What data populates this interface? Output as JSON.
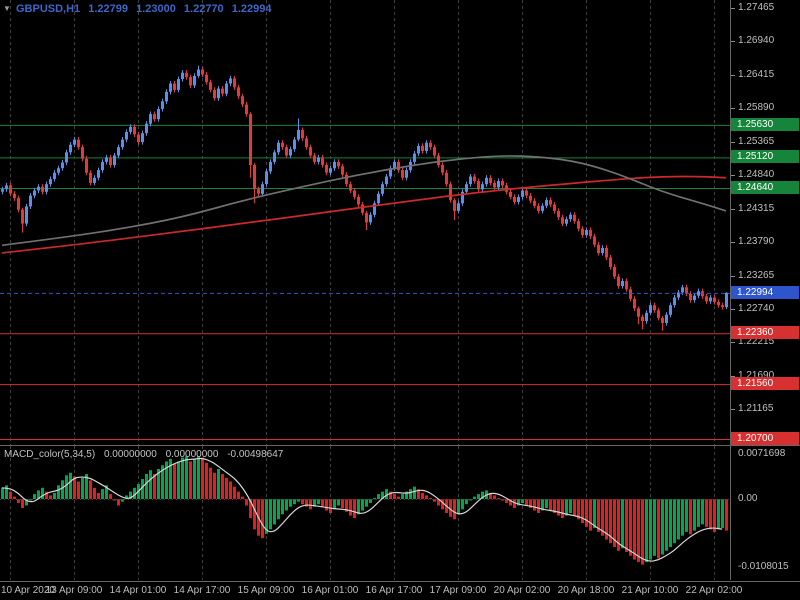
{
  "header": {
    "symbol_period": "GBPUSD,H1",
    "ohlc": {
      "open": "1.22799",
      "high": "1.23000",
      "low": "1.22770",
      "close": "1.22994"
    },
    "title_color": "#3e66c9",
    "dropdown_icon": "▼"
  },
  "macd_header": {
    "label": "MACD_color(5,34,5)",
    "values": [
      "0.00000000",
      "0.00000000",
      "-0.00498647"
    ]
  },
  "chart_data": [
    {
      "type": "candlestick",
      "title": "GBPUSD,H1",
      "xlabel": "",
      "ylabel": "",
      "ylim": [
        1.20605,
        1.27591
      ],
      "grid": "vertical-dashed",
      "x_tick_labels": [
        "10 Apr 2020",
        "13 Apr 09:00",
        "14 Apr 01:00",
        "14 Apr 17:00",
        "15 Apr 09:00",
        "16 Apr 01:00",
        "16 Apr 17:00",
        "17 Apr 09:00",
        "20 Apr 02:00",
        "20 Apr 18:00",
        "21 Apr 10:00",
        "22 Apr 02:00"
      ],
      "x_tick_bar_index": [
        2,
        18,
        34,
        50,
        66,
        82,
        98,
        114,
        130,
        146,
        162,
        178
      ],
      "y_tick_labels": [
        "1.27465",
        "1.26940",
        "1.26415",
        "1.25890",
        "1.25365",
        "1.24840",
        "1.24315",
        "1.23790",
        "1.23265",
        "1.22740",
        "1.22215",
        "1.21690",
        "1.21165"
      ],
      "first_open": 1.2458,
      "wick_default": 0.0004,
      "wick_overrides": {
        "5": [
          0.0003,
          0.0014
        ],
        "49": [
          0.0006,
          0.0003
        ],
        "62": [
          0.0003,
          0.002
        ],
        "63": [
          0.0003,
          0.0022
        ],
        "74": [
          0.0018,
          0.0003
        ],
        "91": [
          0.0003,
          0.0012
        ],
        "113": [
          0.0003,
          0.0014
        ],
        "159": [
          0.0003,
          0.0012
        ],
        "160": [
          0.0003,
          0.0013
        ],
        "165": [
          0.0003,
          0.0012
        ],
        "181": [
          0.0001,
          0.0003
        ]
      },
      "closes": [
        1.2462,
        1.2468,
        1.2455,
        1.2448,
        1.243,
        1.2408,
        1.2435,
        1.2452,
        1.246,
        1.2466,
        1.2458,
        1.247,
        1.2478,
        1.2488,
        1.2495,
        1.2504,
        1.252,
        1.2532,
        1.254,
        1.2528,
        1.251,
        1.2488,
        1.2472,
        1.248,
        1.2492,
        1.2505,
        1.2512,
        1.25,
        1.2515,
        1.2528,
        1.254,
        1.2552,
        1.256,
        1.2548,
        1.2536,
        1.255,
        1.2565,
        1.258,
        1.2572,
        1.2588,
        1.26,
        1.2615,
        1.2628,
        1.2618,
        1.2635,
        1.2645,
        1.2638,
        1.2625,
        1.264,
        1.265,
        1.2642,
        1.263,
        1.2618,
        1.2605,
        1.262,
        1.2612,
        1.2628,
        1.2636,
        1.2622,
        1.2608,
        1.2595,
        1.258,
        1.25,
        1.2462,
        1.2455,
        1.247,
        1.249,
        1.2505,
        1.252,
        1.2535,
        1.2528,
        1.2515,
        1.2525,
        1.254,
        1.2555,
        1.2542,
        1.2528,
        1.2515,
        1.2505,
        1.2512,
        1.25,
        1.2488,
        1.2495,
        1.2505,
        1.2498,
        1.2485,
        1.247,
        1.246,
        1.245,
        1.2438,
        1.2425,
        1.241,
        1.2422,
        1.244,
        1.2455,
        1.247,
        1.2482,
        1.2495,
        1.2505,
        1.2492,
        1.248,
        1.2492,
        1.2505,
        1.2518,
        1.253,
        1.2522,
        1.2535,
        1.2528,
        1.2515,
        1.25,
        1.2488,
        1.247,
        1.2445,
        1.2428,
        1.244,
        1.2458,
        1.247,
        1.2482,
        1.2475,
        1.2462,
        1.247,
        1.248,
        1.2472,
        1.2465,
        1.2475,
        1.2468,
        1.2458,
        1.245,
        1.2442,
        1.245,
        1.246,
        1.2452,
        1.2444,
        1.2436,
        1.2428,
        1.2436,
        1.2445,
        1.2438,
        1.2428,
        1.2418,
        1.2408,
        1.2415,
        1.2422,
        1.2412,
        1.24,
        1.239,
        1.2398,
        1.2388,
        1.2375,
        1.2362,
        1.237,
        1.2355,
        1.234,
        1.2325,
        1.231,
        1.2318,
        1.2305,
        1.229,
        1.2275,
        1.2262,
        1.2255,
        1.2268,
        1.228,
        1.2272,
        1.226,
        1.2252,
        1.2265,
        1.228,
        1.2292,
        1.23,
        1.2308,
        1.2298,
        1.2288,
        1.2295,
        1.2302,
        1.2294,
        1.2286,
        1.2292,
        1.2285,
        1.228,
        1.2277,
        1.22994
      ],
      "colors": {
        "up": "#5d8fe8",
        "down": "#e03a3a"
      },
      "overlays": {
        "ma_dark": {
          "color": "#707070",
          "points": [
            [
              0,
              1.2374
            ],
            [
              15,
              1.2386
            ],
            [
              30,
              1.24
            ],
            [
              45,
              1.2418
            ],
            [
              60,
              1.2444
            ],
            [
              75,
              1.2466
            ],
            [
              90,
              1.2486
            ],
            [
              105,
              1.2502
            ],
            [
              115,
              1.251
            ],
            [
              125,
              1.2515
            ],
            [
              135,
              1.2513
            ],
            [
              145,
              1.2504
            ],
            [
              155,
              1.2484
            ],
            [
              165,
              1.2458
            ],
            [
              175,
              1.244
            ],
            [
              181,
              1.2428
            ]
          ]
        },
        "ma_red": {
          "color": "#cc2a2a",
          "points": [
            [
              0,
              1.2362
            ],
            [
              20,
              1.2376
            ],
            [
              40,
              1.2392
            ],
            [
              60,
              1.2408
            ],
            [
              80,
              1.2425
            ],
            [
              100,
              1.2442
            ],
            [
              120,
              1.2458
            ],
            [
              140,
              1.247
            ],
            [
              155,
              1.2478
            ],
            [
              165,
              1.2482
            ],
            [
              175,
              1.2482
            ],
            [
              181,
              1.248
            ]
          ]
        }
      },
      "levels": {
        "resistance": [
          {
            "label": "1.25630",
            "value": 1.2563,
            "color": "#16843a"
          },
          {
            "label": "1.25120",
            "value": 1.2512,
            "color": "#16843a"
          },
          {
            "label": "1.24640",
            "value": 1.2464,
            "color": "#16843a"
          }
        ],
        "support": [
          {
            "label": "1.22360",
            "value": 1.2236,
            "color": "#d63030"
          },
          {
            "label": "1.21560",
            "value": 1.2156,
            "color": "#d63030"
          },
          {
            "label": "1.20700",
            "value": 1.207,
            "color": "#d63030"
          }
        ],
        "current_price": {
          "label": "1.22994",
          "value": 1.22994,
          "color": "#2f55cc"
        }
      }
    },
    {
      "type": "bar",
      "title": "MACD_color(5,34,5)",
      "ylim": [
        -0.01285,
        0.00845
      ],
      "y_tick_labels": [
        "0.0071698",
        "0.00",
        "-0.0108015"
      ],
      "colors": {
        "up": "#00a651",
        "down": "#e01f1f",
        "signal": "#d4d4d4"
      },
      "values": [
        0.0018,
        0.0022,
        0.0012,
        0.0004,
        -0.0006,
        -0.0014,
        -0.001,
        -0.0002,
        0.0008,
        0.0014,
        0.0018,
        0.0012,
        0.0006,
        0.001,
        0.0022,
        0.003,
        0.0038,
        0.0042,
        0.0036,
        0.0028,
        0.0034,
        0.004,
        0.003,
        0.0018,
        0.001,
        0.0016,
        0.0022,
        0.0008,
        -0.0002,
        -0.001,
        -0.0004,
        0.0006,
        0.0012,
        0.0018,
        0.0024,
        0.0032,
        0.004,
        0.0046,
        0.004,
        0.0048,
        0.0054,
        0.006,
        0.0064,
        0.0056,
        0.006,
        0.0066,
        0.0068,
        0.006,
        0.0064,
        0.0068,
        0.0066,
        0.0058,
        0.005,
        0.0042,
        0.0048,
        0.004,
        0.0034,
        0.0028,
        0.002,
        0.0012,
        0.0004,
        -0.001,
        -0.003,
        -0.0048,
        -0.0058,
        -0.0062,
        -0.0055,
        -0.0048,
        -0.004,
        -0.0032,
        -0.0024,
        -0.0018,
        -0.0012,
        -0.0008,
        -0.0004,
        -0.0008,
        -0.0012,
        -0.0016,
        -0.0012,
        -0.0008,
        -0.0012,
        -0.0018,
        -0.0022,
        -0.0016,
        -0.001,
        -0.0014,
        -0.002,
        -0.0026,
        -0.003,
        -0.0024,
        -0.0018,
        -0.0012,
        -0.0006,
        0.0002,
        0.0008,
        0.0012,
        0.0016,
        0.0012,
        0.0008,
        0.0004,
        0.0008,
        0.0012,
        0.0016,
        0.002,
        0.0016,
        0.001,
        0.0006,
        0.0002,
        -0.0004,
        -0.001,
        -0.0016,
        -0.0022,
        -0.0028,
        -0.0032,
        -0.0024,
        -0.0016,
        -0.0008,
        -0.0002,
        0.0004,
        0.0008,
        0.0012,
        0.0014,
        0.001,
        0.0006,
        0.0002,
        -0.0002,
        -0.0006,
        -0.001,
        -0.0014,
        -0.001,
        -0.0006,
        -0.001,
        -0.0014,
        -0.0018,
        -0.0022,
        -0.0018,
        -0.0014,
        -0.0018,
        -0.0022,
        -0.0026,
        -0.003,
        -0.0026,
        -0.0022,
        -0.0026,
        -0.0032,
        -0.0038,
        -0.0044,
        -0.005,
        -0.0046,
        -0.0052,
        -0.0058,
        -0.0064,
        -0.007,
        -0.0076,
        -0.0082,
        -0.0078,
        -0.0084,
        -0.009,
        -0.0096,
        -0.01,
        -0.0104,
        -0.01,
        -0.0096,
        -0.009,
        -0.0094,
        -0.0088,
        -0.0082,
        -0.0076,
        -0.007,
        -0.0064,
        -0.0058,
        -0.0052,
        -0.0056,
        -0.005,
        -0.0044,
        -0.004,
        -0.0044,
        -0.0048,
        -0.0052,
        -0.0048,
        -0.0046,
        -0.0049864
      ]
    }
  ]
}
